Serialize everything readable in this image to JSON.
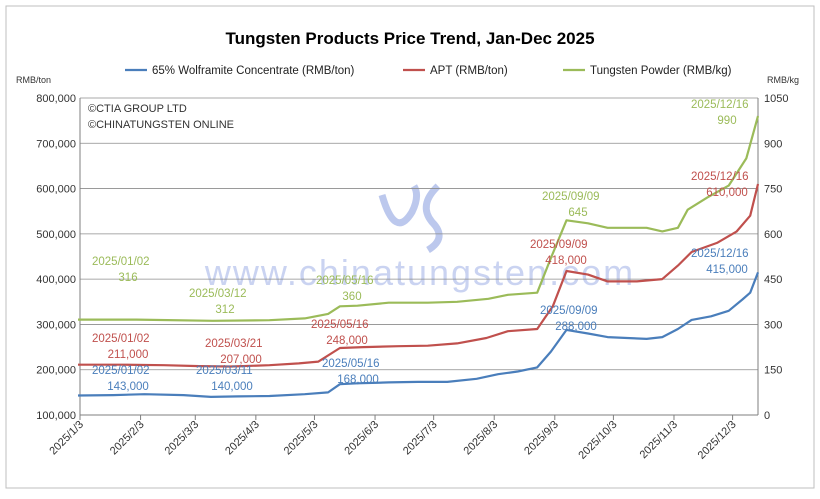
{
  "chart_data": {
    "type": "line",
    "title": "Tungsten Products Price Trend, Jan-Dec 2025",
    "left_axis_unit": "RMB/ton",
    "right_axis_unit": "RMB/kg",
    "ylim": [
      100000,
      800000
    ],
    "y2lim": [
      0,
      1050
    ],
    "grid": true,
    "legend_placement": "top",
    "left_ticks": [
      "100,000",
      "200,000",
      "300,000",
      "400,000",
      "500,000",
      "600,000",
      "700,000",
      "800,000"
    ],
    "left_tick_values": [
      100000,
      200000,
      300000,
      400000,
      500000,
      600000,
      700000,
      800000
    ],
    "right_ticks": [
      "0",
      "150",
      "300",
      "450",
      "600",
      "750",
      "900",
      "1050"
    ],
    "right_tick_values": [
      0,
      150,
      300,
      450,
      600,
      750,
      900,
      1050
    ],
    "x_ticks": [
      "2025/1/3",
      "2025/2/3",
      "2025/3/3",
      "2025/4/3",
      "2025/5/3",
      "2025/6/3",
      "2025/7/3",
      "2025/8/3",
      "2025/9/3",
      "2025/10/3",
      "2025/11/3",
      "2025/12/3"
    ],
    "x_start": "2025-01-03",
    "x_end": "2025-12-16",
    "copyright": [
      "©CTIA GROUP LTD",
      "©CHINATUNGSTEN ONLINE"
    ],
    "watermark": "www.chinatungsten.com",
    "series": [
      {
        "name": "65% Wolframite Concentrate (RMB/ton)",
        "color": "#4a7ebb",
        "axis": "left",
        "points": [
          [
            "2025-01-02",
            143000
          ],
          [
            "2025-01-20",
            144000
          ],
          [
            "2025-02-05",
            146000
          ],
          [
            "2025-02-25",
            144000
          ],
          [
            "2025-03-11",
            140000
          ],
          [
            "2025-03-25",
            141000
          ],
          [
            "2025-04-10",
            142000
          ],
          [
            "2025-04-28",
            146000
          ],
          [
            "2025-05-10",
            150000
          ],
          [
            "2025-05-16",
            168000
          ],
          [
            "2025-05-25",
            170000
          ],
          [
            "2025-06-10",
            172000
          ],
          [
            "2025-06-25",
            173000
          ],
          [
            "2025-07-10",
            173000
          ],
          [
            "2025-07-25",
            180000
          ],
          [
            "2025-08-05",
            190000
          ],
          [
            "2025-08-15",
            196000
          ],
          [
            "2025-08-25",
            205000
          ],
          [
            "2025-09-01",
            240000
          ],
          [
            "2025-09-09",
            288000
          ],
          [
            "2025-09-20",
            280000
          ],
          [
            "2025-09-30",
            272000
          ],
          [
            "2025-10-10",
            270000
          ],
          [
            "2025-10-20",
            268000
          ],
          [
            "2025-10-28",
            272000
          ],
          [
            "2025-11-05",
            290000
          ],
          [
            "2025-11-12",
            310000
          ],
          [
            "2025-11-22",
            318000
          ],
          [
            "2025-12-01",
            330000
          ],
          [
            "2025-12-08",
            355000
          ],
          [
            "2025-12-12",
            370000
          ],
          [
            "2025-12-16",
            415000
          ]
        ],
        "labels": [
          {
            "date": "2025/01/02",
            "value": "143,000"
          },
          {
            "date": "2025/03/11",
            "value": "140,000"
          },
          {
            "date": "2025/05/16",
            "value": "168,000"
          },
          {
            "date": "2025/09/09",
            "value": "288,000"
          },
          {
            "date": "2025/12/16",
            "value": "415,000"
          }
        ]
      },
      {
        "name": "APT (RMB/ton)",
        "color": "#c0504d",
        "axis": "left",
        "points": [
          [
            "2025-01-02",
            211000
          ],
          [
            "2025-01-25",
            211000
          ],
          [
            "2025-02-15",
            210000
          ],
          [
            "2025-03-05",
            208000
          ],
          [
            "2025-03-21",
            207000
          ],
          [
            "2025-04-10",
            210000
          ],
          [
            "2025-04-25",
            214000
          ],
          [
            "2025-05-05",
            218000
          ],
          [
            "2025-05-16",
            248000
          ],
          [
            "2025-05-28",
            250000
          ],
          [
            "2025-06-15",
            252000
          ],
          [
            "2025-06-30",
            253000
          ],
          [
            "2025-07-15",
            258000
          ],
          [
            "2025-07-30",
            270000
          ],
          [
            "2025-08-10",
            285000
          ],
          [
            "2025-08-25",
            290000
          ],
          [
            "2025-09-02",
            340000
          ],
          [
            "2025-09-09",
            418000
          ],
          [
            "2025-09-20",
            410000
          ],
          [
            "2025-09-30",
            395000
          ],
          [
            "2025-10-15",
            395000
          ],
          [
            "2025-10-28",
            400000
          ],
          [
            "2025-11-05",
            430000
          ],
          [
            "2025-11-12",
            460000
          ],
          [
            "2025-11-25",
            480000
          ],
          [
            "2025-12-05",
            505000
          ],
          [
            "2025-12-12",
            540000
          ],
          [
            "2025-12-16",
            610000
          ]
        ],
        "labels": [
          {
            "date": "2025/01/02",
            "value": "211,000"
          },
          {
            "date": "2025/03/21",
            "value": "207,000"
          },
          {
            "date": "2025/05/16",
            "value": "248,000"
          },
          {
            "date": "2025/09/09",
            "value": "418,000"
          },
          {
            "date": "2025/12/16",
            "value": "610,000"
          }
        ]
      },
      {
        "name": "Tungsten Powder (RMB/kg)",
        "color": "#9bbb59",
        "axis": "right",
        "points": [
          [
            "2025-01-02",
            316
          ],
          [
            "2025-02-01",
            316
          ],
          [
            "2025-03-12",
            312
          ],
          [
            "2025-04-10",
            314
          ],
          [
            "2025-04-28",
            320
          ],
          [
            "2025-05-10",
            335
          ],
          [
            "2025-05-16",
            360
          ],
          [
            "2025-05-25",
            362
          ],
          [
            "2025-06-10",
            372
          ],
          [
            "2025-06-30",
            372
          ],
          [
            "2025-07-15",
            375
          ],
          [
            "2025-07-31",
            385
          ],
          [
            "2025-08-10",
            398
          ],
          [
            "2025-08-25",
            405
          ],
          [
            "2025-09-01",
            520
          ],
          [
            "2025-09-09",
            645
          ],
          [
            "2025-09-20",
            635
          ],
          [
            "2025-09-30",
            620
          ],
          [
            "2025-10-20",
            620
          ],
          [
            "2025-10-28",
            608
          ],
          [
            "2025-11-05",
            620
          ],
          [
            "2025-11-10",
            680
          ],
          [
            "2025-11-20",
            720
          ],
          [
            "2025-12-01",
            760
          ],
          [
            "2025-12-10",
            850
          ],
          [
            "2025-12-16",
            990
          ]
        ],
        "labels": [
          {
            "date": "2025/01/02",
            "value": "316"
          },
          {
            "date": "2025/03/12",
            "value": "312"
          },
          {
            "date": "2025/05/16",
            "value": "360"
          },
          {
            "date": "2025/09/09",
            "value": "645"
          },
          {
            "date": "2025/12/16",
            "value": "990"
          }
        ]
      }
    ]
  }
}
